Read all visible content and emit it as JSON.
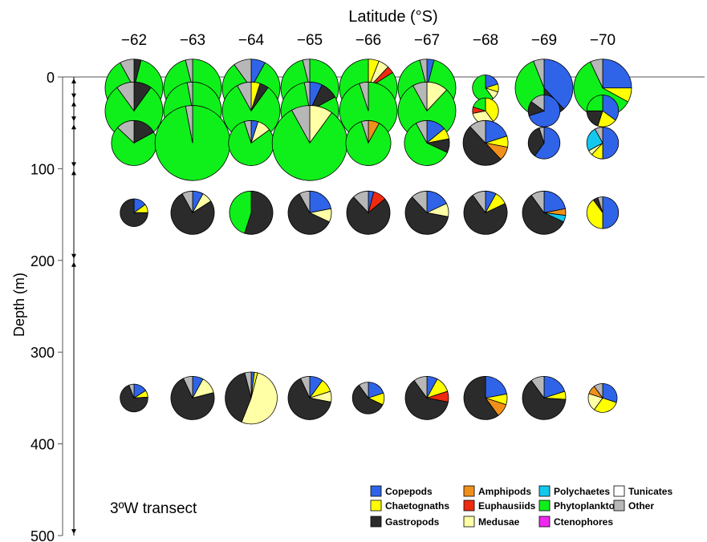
{
  "colors": {
    "Copepods": "#2f64e8",
    "Chaetognaths": "#ffff00",
    "Gastropods": "#2b2b2b",
    "Amphipods": "#f0901a",
    "Euphausiids": "#ee2a10",
    "Medusae": "#ffffa6",
    "Polychaetes": "#12c8ee",
    "Phytoplankton": "#0ff01a",
    "Ctenophores": "#ee28ee",
    "Tunicates": "#ffffff",
    "Other": "#b7b7b7"
  },
  "chart_data": {
    "type": "pie",
    "title": "Latitude (°S)",
    "ylabel": "Depth (m)",
    "annotation": "3ºW transect",
    "x_ticks": [
      "−62",
      "−63",
      "−64",
      "−65",
      "−66",
      "−67",
      "−68",
      "−69",
      "−70"
    ],
    "y_ticks": [
      "0",
      "100",
      "200",
      "300",
      "400",
      "500"
    ],
    "ylim": [
      0,
      500
    ],
    "depth_intervals": [
      [
        0,
        25
      ],
      [
        25,
        50
      ],
      [
        50,
        100
      ],
      [
        100,
        200
      ],
      [
        200,
        500
      ]
    ],
    "legend": [
      "Copepods",
      "Amphipods",
      "Polychaetes",
      "Tunicates",
      "Chaetognaths",
      "Euphausiids",
      "Phytoplankton",
      "Other",
      "Gastropods",
      "Medusae",
      "Ctenophores"
    ],
    "legend_position": "bottom-right",
    "pies": [
      {
        "lat": -62,
        "depth": 12,
        "size": 1.0,
        "slices": {
          "Gastropods": 0.04,
          "Phytoplankton": 0.88,
          "Other": 0.08
        }
      },
      {
        "lat": -62,
        "depth": 37,
        "size": 1.0,
        "slices": {
          "Gastropods": 0.1,
          "Phytoplankton": 0.8,
          "Other": 0.1
        }
      },
      {
        "lat": -62,
        "depth": 72,
        "size": 0.78,
        "slices": {
          "Gastropods": 0.17,
          "Phytoplankton": 0.7,
          "Other": 0.13
        }
      },
      {
        "lat": -62,
        "depth": 148,
        "size": 0.48,
        "slices": {
          "Copepods": 0.15,
          "Chaetognaths": 0.1,
          "Gastropods": 0.75
        }
      },
      {
        "lat": -62,
        "depth": 350,
        "size": 0.48,
        "slices": {
          "Copepods": 0.16,
          "Chaetognaths": 0.08,
          "Gastropods": 0.7,
          "Other": 0.06
        }
      },
      {
        "lat": -63,
        "depth": 12,
        "size": 1.0,
        "slices": {
          "Phytoplankton": 0.96,
          "Other": 0.04
        }
      },
      {
        "lat": -63,
        "depth": 37,
        "size": 1.0,
        "slices": {
          "Phytoplankton": 0.97,
          "Other": 0.03
        }
      },
      {
        "lat": -63,
        "depth": 72,
        "size": 1.3,
        "slices": {
          "Phytoplankton": 0.97,
          "Other": 0.03
        }
      },
      {
        "lat": -63,
        "depth": 148,
        "size": 0.75,
        "slices": {
          "Copepods": 0.08,
          "Gastropods": 0.76,
          "Medusae": 0.08,
          "Other": 0.08
        }
      },
      {
        "lat": -63,
        "depth": 350,
        "size": 0.75,
        "slices": {
          "Copepods": 0.08,
          "Gastropods": 0.72,
          "Medusae": 0.13,
          "Other": 0.07
        }
      },
      {
        "lat": -64,
        "depth": 12,
        "size": 1.0,
        "slices": {
          "Copepods": 0.08,
          "Phytoplankton": 0.82,
          "Other": 0.1
        }
      },
      {
        "lat": -64,
        "depth": 37,
        "size": 1.0,
        "slices": {
          "Chaetognaths": 0.05,
          "Gastropods": 0.05,
          "Phytoplankton": 0.82,
          "Other": 0.08
        }
      },
      {
        "lat": -64,
        "depth": 72,
        "size": 0.78,
        "slices": {
          "Copepods": 0.05,
          "Medusae": 0.1,
          "Phytoplankton": 0.8,
          "Other": 0.05
        }
      },
      {
        "lat": -64,
        "depth": 148,
        "size": 0.75,
        "slices": {
          "Gastropods": 0.55,
          "Phytoplankton": 0.45
        }
      },
      {
        "lat": -64,
        "depth": 350,
        "size": 0.9,
        "slices": {
          "Copepods": 0.02,
          "Chaetognaths": 0.02,
          "Gastropods": 0.4,
          "Medusae": 0.52,
          "Other": 0.04
        }
      },
      {
        "lat": -65,
        "depth": 12,
        "size": 1.0,
        "slices": {
          "Phytoplankton": 0.96,
          "Other": 0.04
        }
      },
      {
        "lat": -65,
        "depth": 37,
        "size": 1.0,
        "slices": {
          "Copepods": 0.07,
          "Gastropods": 0.1,
          "Phytoplankton": 0.8,
          "Other": 0.03
        }
      },
      {
        "lat": -65,
        "depth": 72,
        "size": 1.3,
        "slices": {
          "Medusae": 0.1,
          "Phytoplankton": 0.82,
          "Other": 0.08
        }
      },
      {
        "lat": -65,
        "depth": 148,
        "size": 0.75,
        "slices": {
          "Copepods": 0.22,
          "Gastropods": 0.6,
          "Medusae": 0.1,
          "Other": 0.08
        }
      },
      {
        "lat": -65,
        "depth": 350,
        "size": 0.75,
        "slices": {
          "Copepods": 0.1,
          "Chaetognaths": 0.1,
          "Gastropods": 0.65,
          "Medusae": 0.08,
          "Other": 0.07
        }
      },
      {
        "lat": -66,
        "depth": 12,
        "size": 1.0,
        "slices": {
          "Chaetognaths": 0.06,
          "Euphausiids": 0.04,
          "Medusae": 0.06,
          "Phytoplankton": 0.84
        }
      },
      {
        "lat": -66,
        "depth": 37,
        "size": 1.0,
        "slices": {
          "Phytoplankton": 0.95,
          "Other": 0.05
        }
      },
      {
        "lat": -66,
        "depth": 72,
        "size": 0.78,
        "slices": {
          "Amphipods": 0.08,
          "Phytoplankton": 0.87,
          "Other": 0.05
        }
      },
      {
        "lat": -66,
        "depth": 148,
        "size": 0.75,
        "slices": {
          "Copepods": 0.04,
          "Gastropods": 0.74,
          "Euphausiids": 0.1,
          "Other": 0.12
        }
      },
      {
        "lat": -66,
        "depth": 350,
        "size": 0.55,
        "slices": {
          "Copepods": 0.2,
          "Chaetognaths": 0.12,
          "Gastropods": 0.58,
          "Other": 0.1
        }
      },
      {
        "lat": -67,
        "depth": 12,
        "size": 1.0,
        "slices": {
          "Copepods": 0.04,
          "Phytoplankton": 0.92,
          "Other": 0.04
        }
      },
      {
        "lat": -67,
        "depth": 37,
        "size": 1.0,
        "slices": {
          "Medusae": 0.12,
          "Phytoplankton": 0.8,
          "Other": 0.08
        }
      },
      {
        "lat": -67,
        "depth": 72,
        "size": 0.78,
        "slices": {
          "Copepods": 0.14,
          "Chaetognaths": 0.08,
          "Gastropods": 0.1,
          "Phytoplankton": 0.6,
          "Other": 0.08
        }
      },
      {
        "lat": -67,
        "depth": 148,
        "size": 0.75,
        "slices": {
          "Copepods": 0.18,
          "Gastropods": 0.6,
          "Medusae": 0.1,
          "Other": 0.12
        }
      },
      {
        "lat": -67,
        "depth": 350,
        "size": 0.75,
        "slices": {
          "Copepods": 0.08,
          "Chaetognaths": 0.12,
          "Gastropods": 0.62,
          "Euphausiids": 0.08,
          "Other": 0.1
        }
      },
      {
        "lat": -68,
        "depth": 12,
        "size": 0.45,
        "slices": {
          "Copepods": 0.2,
          "Chaetognaths": 0.1,
          "Medusae": 0.1,
          "Phytoplankton": 0.6
        }
      },
      {
        "lat": -68,
        "depth": 37,
        "size": 0.45,
        "slices": {
          "Chaetognaths": 0.4,
          "Euphausiids": 0.08,
          "Medusae": 0.32,
          "Phytoplankton": 0.2
        }
      },
      {
        "lat": -68,
        "depth": 72,
        "size": 0.78,
        "slices": {
          "Copepods": 0.2,
          "Chaetognaths": 0.08,
          "Gastropods": 0.5,
          "Amphipods": 0.1,
          "Other": 0.12
        }
      },
      {
        "lat": -68,
        "depth": 148,
        "size": 0.75,
        "slices": {
          "Copepods": 0.08,
          "Chaetognaths": 0.1,
          "Gastropods": 0.72,
          "Other": 0.1
        }
      },
      {
        "lat": -68,
        "depth": 350,
        "size": 0.75,
        "slices": {
          "Copepods": 0.22,
          "Chaetognaths": 0.08,
          "Gastropods": 0.6,
          "Amphipods": 0.1
        }
      },
      {
        "lat": -69,
        "depth": 12,
        "size": 1.0,
        "slices": {
          "Copepods": 0.38,
          "Gastropods": 0.12,
          "Phytoplankton": 0.44,
          "Other": 0.06
        }
      },
      {
        "lat": -69,
        "depth": 37,
        "size": 0.55,
        "slices": {
          "Copepods": 0.7,
          "Gastropods": 0.15,
          "Other": 0.15
        }
      },
      {
        "lat": -69,
        "depth": 72,
        "size": 0.55,
        "slices": {
          "Copepods": 0.6,
          "Gastropods": 0.35,
          "Other": 0.05
        }
      },
      {
        "lat": -69,
        "depth": 148,
        "size": 0.75,
        "slices": {
          "Copepods": 0.22,
          "Gastropods": 0.58,
          "Amphipods": 0.05,
          "Polychaetes": 0.05,
          "Other": 0.1
        }
      },
      {
        "lat": -69,
        "depth": 350,
        "size": 0.75,
        "slices": {
          "Copepods": 0.2,
          "Chaetognaths": 0.06,
          "Gastropods": 0.64,
          "Other": 0.1
        }
      },
      {
        "lat": -70,
        "depth": 12,
        "size": 1.0,
        "slices": {
          "Copepods": 0.25,
          "Chaetognaths": 0.08,
          "Phytoplankton": 0.6,
          "Other": 0.07
        }
      },
      {
        "lat": -70,
        "depth": 37,
        "size": 0.55,
        "slices": {
          "Copepods": 0.35,
          "Chaetognaths": 0.2,
          "Gastropods": 0.2,
          "Phytoplankton": 0.25
        }
      },
      {
        "lat": -70,
        "depth": 72,
        "size": 0.55,
        "slices": {
          "Copepods": 0.5,
          "Chaetognaths": 0.12,
          "Polychaetes": 0.25,
          "Medusae": 0.05,
          "Other": 0.08
        }
      },
      {
        "lat": -70,
        "depth": 148,
        "size": 0.55,
        "slices": {
          "Copepods": 0.5,
          "Chaetognaths": 0.4,
          "Gastropods": 0.05,
          "Other": 0.05
        }
      },
      {
        "lat": -70,
        "depth": 350,
        "size": 0.5,
        "slices": {
          "Copepods": 0.3,
          "Chaetognaths": 0.3,
          "Amphipods": 0.1,
          "Medusae": 0.2,
          "Other": 0.1
        }
      }
    ]
  }
}
